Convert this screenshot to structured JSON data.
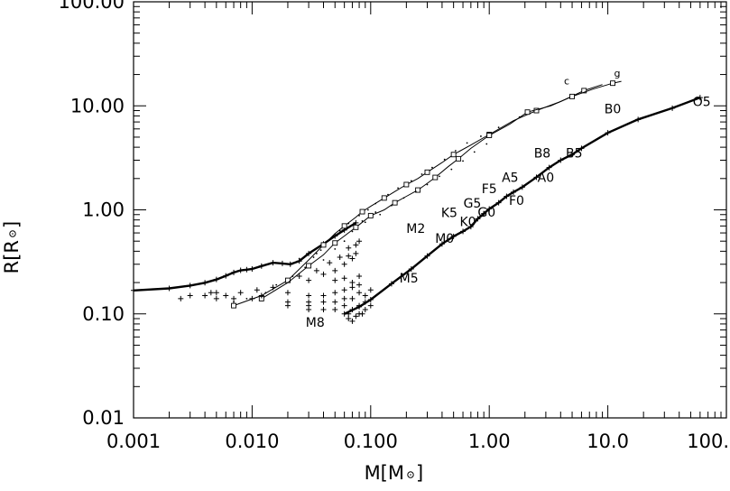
{
  "chart_data": {
    "type": "line",
    "x_scale": "log",
    "y_scale": "log",
    "xlim": [
      0.001,
      100
    ],
    "ylim": [
      0.01,
      100
    ],
    "xlabel": "M[M",
    "ylabel": "R[R",
    "x_ticks": [
      {
        "value": 0.001,
        "label": "0.001"
      },
      {
        "value": 0.01,
        "label": "0.010"
      },
      {
        "value": 0.1,
        "label": "0.100"
      },
      {
        "value": 1,
        "label": "1.00"
      },
      {
        "value": 10,
        "label": "10.0"
      },
      {
        "value": 100,
        "label": "100."
      }
    ],
    "y_ticks": [
      {
        "value": 0.01,
        "label": "0.01"
      },
      {
        "value": 0.1,
        "label": "0.10"
      },
      {
        "value": 1,
        "label": "1.00"
      },
      {
        "value": 10,
        "label": "10.00"
      },
      {
        "value": 100,
        "label": "100.00"
      }
    ],
    "series": [
      {
        "values": [
          [
            0.001,
            0.168
          ],
          [
            0.002,
            0.176
          ],
          [
            0.003,
            0.187
          ],
          [
            0.004,
            0.199
          ],
          [
            0.005,
            0.214
          ],
          [
            0.006,
            0.232
          ],
          [
            0.007,
            0.25
          ],
          [
            0.008,
            0.262
          ],
          [
            0.009,
            0.266
          ],
          [
            0.01,
            0.27
          ],
          [
            0.012,
            0.288
          ],
          [
            0.015,
            0.31
          ],
          [
            0.018,
            0.305
          ],
          [
            0.021,
            0.3
          ],
          [
            0.025,
            0.322
          ],
          [
            0.03,
            0.38
          ],
          [
            0.04,
            0.47
          ],
          [
            0.05,
            0.56
          ],
          [
            0.06,
            0.64
          ],
          [
            0.075,
            0.75
          ]
        ]
      },
      {
        "values": [
          [
            0.06,
            0.1
          ],
          [
            0.08,
            0.117
          ],
          [
            0.1,
            0.137
          ],
          [
            0.15,
            0.195
          ],
          [
            0.22,
            0.27
          ],
          [
            0.3,
            0.36
          ],
          [
            0.4,
            0.47
          ],
          [
            0.5,
            0.556
          ],
          [
            0.6,
            0.62
          ],
          [
            0.7,
            0.69
          ],
          [
            0.8,
            0.82
          ],
          [
            0.9,
            0.92
          ],
          [
            1.0,
            1.02
          ],
          [
            1.2,
            1.17
          ],
          [
            1.4,
            1.35
          ],
          [
            1.6,
            1.48
          ],
          [
            1.9,
            1.65
          ],
          [
            2.5,
            2.06
          ],
          [
            3.2,
            2.55
          ],
          [
            4.0,
            3.0
          ],
          [
            5.0,
            3.4
          ],
          [
            6.0,
            3.9
          ],
          [
            10,
            5.5
          ],
          [
            18,
            7.4
          ],
          [
            35,
            9.5
          ],
          [
            60,
            12.0
          ]
        ]
      },
      {
        "label": "c",
        "values": [
          [
            0.007,
            0.12
          ],
          [
            0.012,
            0.15
          ],
          [
            0.02,
            0.21
          ],
          [
            0.03,
            0.33
          ],
          [
            0.04,
            0.46
          ],
          [
            0.05,
            0.59
          ],
          [
            0.06,
            0.7
          ],
          [
            0.075,
            0.85
          ],
          [
            0.085,
            0.96
          ],
          [
            0.1,
            1.08
          ],
          [
            0.13,
            1.3
          ],
          [
            0.16,
            1.5
          ],
          [
            0.2,
            1.75
          ],
          [
            0.25,
            2.0
          ],
          [
            0.3,
            2.3
          ],
          [
            0.4,
            2.85
          ],
          [
            0.5,
            3.4
          ],
          [
            0.7,
            4.2
          ],
          [
            1.0,
            5.3
          ],
          [
            1.6,
            7.2
          ],
          [
            2.5,
            9.0
          ],
          [
            4.0,
            11.0
          ],
          [
            6.3,
            14.0
          ],
          [
            9.0,
            16.0
          ]
        ]
      },
      {
        "label": "g",
        "values": [
          [
            0.012,
            0.14
          ],
          [
            0.02,
            0.2
          ],
          [
            0.03,
            0.29
          ],
          [
            0.04,
            0.37
          ],
          [
            0.05,
            0.48
          ],
          [
            0.06,
            0.56
          ],
          [
            0.075,
            0.68
          ],
          [
            0.09,
            0.8
          ],
          [
            0.1,
            0.88
          ],
          [
            0.13,
            1.0
          ],
          [
            0.16,
            1.17
          ],
          [
            0.2,
            1.35
          ],
          [
            0.25,
            1.55
          ],
          [
            0.3,
            1.8
          ],
          [
            0.35,
            2.05
          ],
          [
            0.45,
            2.6
          ],
          [
            0.55,
            3.1
          ],
          [
            0.7,
            3.9
          ],
          [
            1.0,
            5.2
          ],
          [
            1.5,
            6.7
          ],
          [
            2.1,
            8.7
          ],
          [
            3.3,
            10.0
          ],
          [
            5.0,
            12.3
          ],
          [
            7.5,
            14.5
          ],
          [
            11.0,
            16.5
          ],
          [
            13.0,
            17.2
          ]
        ]
      }
    ],
    "scatter_crosses": [
      [
        0.0025,
        0.14
      ],
      [
        0.003,
        0.15
      ],
      [
        0.004,
        0.15
      ],
      [
        0.005,
        0.16
      ],
      [
        0.006,
        0.15
      ],
      [
        0.007,
        0.14
      ],
      [
        0.008,
        0.16
      ],
      [
        0.01,
        0.14
      ],
      [
        0.012,
        0.15
      ],
      [
        0.005,
        0.14
      ],
      [
        0.0045,
        0.16
      ],
      [
        0.011,
        0.17
      ],
      [
        0.015,
        0.18
      ],
      [
        0.02,
        0.16
      ],
      [
        0.02,
        0.13
      ],
      [
        0.02,
        0.12
      ],
      [
        0.03,
        0.15
      ],
      [
        0.03,
        0.13
      ],
      [
        0.03,
        0.12
      ],
      [
        0.03,
        0.11
      ],
      [
        0.04,
        0.15
      ],
      [
        0.04,
        0.13
      ],
      [
        0.04,
        0.11
      ],
      [
        0.05,
        0.16
      ],
      [
        0.05,
        0.13
      ],
      [
        0.05,
        0.11
      ],
      [
        0.06,
        0.17
      ],
      [
        0.06,
        0.14
      ],
      [
        0.06,
        0.12
      ],
      [
        0.065,
        0.1
      ],
      [
        0.07,
        0.18
      ],
      [
        0.07,
        0.14
      ],
      [
        0.07,
        0.11
      ],
      [
        0.075,
        0.095
      ],
      [
        0.08,
        0.12
      ],
      [
        0.08,
        0.1
      ],
      [
        0.065,
        0.09
      ],
      [
        0.07,
        0.085
      ],
      [
        0.085,
        0.1
      ],
      [
        0.09,
        0.13
      ],
      [
        0.09,
        0.11
      ],
      [
        0.1,
        0.12
      ],
      [
        0.05,
        0.21
      ],
      [
        0.06,
        0.22
      ],
      [
        0.07,
        0.2
      ],
      [
        0.04,
        0.24
      ],
      [
        0.05,
        0.26
      ],
      [
        0.06,
        0.3
      ],
      [
        0.07,
        0.34
      ],
      [
        0.03,
        0.21
      ],
      [
        0.075,
        0.38
      ],
      [
        0.075,
        0.46
      ],
      [
        0.065,
        0.43
      ],
      [
        0.065,
        0.36
      ],
      [
        0.055,
        0.35
      ],
      [
        0.045,
        0.31
      ],
      [
        0.035,
        0.26
      ],
      [
        0.025,
        0.23
      ],
      [
        0.08,
        0.5
      ],
      [
        0.08,
        0.16
      ],
      [
        0.09,
        0.15
      ],
      [
        0.1,
        0.17
      ],
      [
        0.08,
        0.19
      ],
      [
        0.08,
        0.23
      ]
    ],
    "scatter_dots": [
      [
        0.007,
        0.13
      ],
      [
        0.009,
        0.14
      ],
      [
        0.013,
        0.16
      ],
      [
        0.016,
        0.19
      ],
      [
        0.022,
        0.23
      ],
      [
        0.028,
        0.28
      ],
      [
        0.033,
        0.35
      ],
      [
        0.038,
        0.41
      ],
      [
        0.045,
        0.52
      ],
      [
        0.055,
        0.63
      ],
      [
        0.065,
        0.74
      ],
      [
        0.08,
        0.88
      ],
      [
        0.095,
        1.0
      ],
      [
        0.11,
        1.15
      ],
      [
        0.14,
        1.4
      ],
      [
        0.17,
        1.62
      ],
      [
        0.22,
        1.9
      ],
      [
        0.27,
        2.2
      ],
      [
        0.33,
        2.55
      ],
      [
        0.42,
        3.05
      ],
      [
        0.52,
        3.7
      ],
      [
        0.65,
        4.4
      ],
      [
        0.85,
        5.1
      ],
      [
        1.2,
        6.2
      ],
      [
        1.8,
        7.8
      ],
      [
        0.04,
        0.33
      ],
      [
        0.05,
        0.42
      ],
      [
        0.06,
        0.5
      ],
      [
        0.07,
        0.62
      ],
      [
        0.09,
        0.76
      ],
      [
        0.12,
        0.9
      ],
      [
        0.15,
        1.1
      ],
      [
        0.19,
        1.3
      ],
      [
        0.24,
        1.5
      ],
      [
        0.3,
        1.75
      ],
      [
        0.38,
        2.1
      ],
      [
        0.48,
        2.45
      ],
      [
        0.6,
        2.95
      ],
      [
        0.75,
        3.6
      ],
      [
        0.95,
        4.3
      ],
      [
        0.02,
        0.3
      ],
      [
        0.025,
        0.34
      ],
      [
        0.035,
        0.38
      ],
      [
        0.085,
        0.78
      ],
      [
        0.11,
        0.95
      ]
    ],
    "annotations": [
      {
        "text": "c",
        "x": 4.5,
        "y": 16.0
      },
      {
        "text": "g",
        "x": 12.0,
        "y": 19.0
      },
      {
        "text": "O5",
        "x": 62,
        "y": 10.0
      },
      {
        "text": "B0",
        "x": 11.0,
        "y": 8.5
      },
      {
        "text": "B5",
        "x": 5.2,
        "y": 3.2
      },
      {
        "text": "B8",
        "x": 2.8,
        "y": 3.2
      },
      {
        "text": "A0",
        "x": 3.0,
        "y": 1.85
      },
      {
        "text": "A5",
        "x": 1.5,
        "y": 1.85
      },
      {
        "text": "F5",
        "x": 1.0,
        "y": 1.45
      },
      {
        "text": "F0",
        "x": 1.7,
        "y": 1.12
      },
      {
        "text": "G5",
        "x": 0.72,
        "y": 1.05
      },
      {
        "text": "G0",
        "x": 0.95,
        "y": 0.86
      },
      {
        "text": "K5",
        "x": 0.46,
        "y": 0.85
      },
      {
        "text": "K0",
        "x": 0.66,
        "y": 0.7
      },
      {
        "text": "M2",
        "x": 0.24,
        "y": 0.6
      },
      {
        "text": "M0",
        "x": 0.42,
        "y": 0.48
      },
      {
        "text": "M5",
        "x": 0.21,
        "y": 0.2
      },
      {
        "text": "M8",
        "x": 0.034,
        "y": 0.075
      }
    ]
  }
}
